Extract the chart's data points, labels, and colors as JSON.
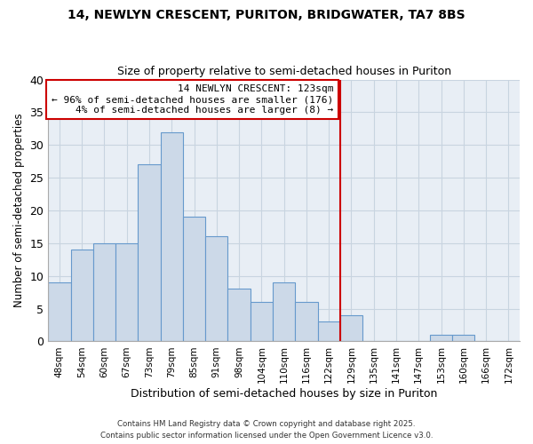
{
  "title1": "14, NEWLYN CRESCENT, PURITON, BRIDGWATER, TA7 8BS",
  "title2": "Size of property relative to semi-detached houses in Puriton",
  "xlabel": "Distribution of semi-detached houses by size in Puriton",
  "ylabel": "Number of semi-detached properties",
  "bar_labels": [
    "48sqm",
    "54sqm",
    "60sqm",
    "67sqm",
    "73sqm",
    "79sqm",
    "85sqm",
    "91sqm",
    "98sqm",
    "104sqm",
    "110sqm",
    "116sqm",
    "122sqm",
    "129sqm",
    "135sqm",
    "141sqm",
    "147sqm",
    "153sqm",
    "160sqm",
    "166sqm",
    "172sqm"
  ],
  "bar_heights": [
    9,
    14,
    15,
    15,
    27,
    32,
    19,
    16,
    8,
    6,
    9,
    6,
    3,
    4,
    0,
    0,
    0,
    1,
    1,
    0,
    0
  ],
  "bar_color": "#ccd9e8",
  "bar_edge_color": "#6699cc",
  "vline_x": 12.5,
  "vline_color": "#cc0000",
  "annotation_text": "14 NEWLYN CRESCENT: 123sqm\n← 96% of semi-detached houses are smaller (176)\n    4% of semi-detached houses are larger (8) →",
  "annotation_box_color": "#cc0000",
  "footnote1": "Contains HM Land Registry data © Crown copyright and database right 2025.",
  "footnote2": "Contains public sector information licensed under the Open Government Licence v3.0.",
  "ylim": [
    0,
    40
  ],
  "yticks": [
    0,
    5,
    10,
    15,
    20,
    25,
    30,
    35,
    40
  ],
  "bg_color": "#ffffff",
  "plot_bg_color": "#e8eef5",
  "grid_color": "#c8d4e0"
}
